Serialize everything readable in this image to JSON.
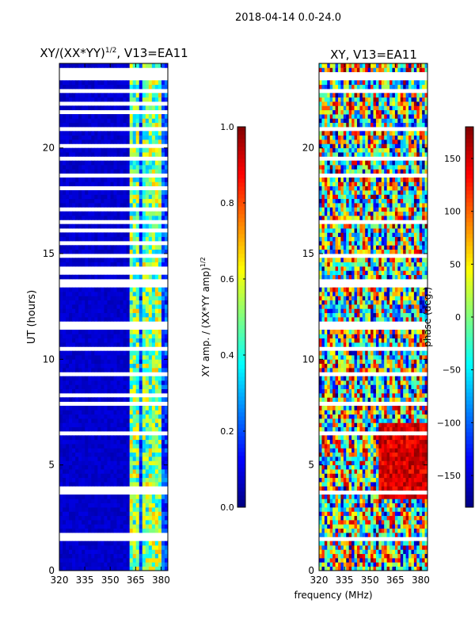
{
  "figure": {
    "suptitle": "2018-04-14 0.0-24.0",
    "shared_xlabel": "frequency (MHz)"
  },
  "colormap": "jet",
  "chart_data": [
    {
      "type": "heatmap",
      "title_main": "XY/(XX*YY)",
      "title_sup": "1/2",
      "title_tail": ", V13=EA11",
      "ylabel": "UT (hours)",
      "xlim": [
        320,
        384
      ],
      "ylim": [
        0,
        24
      ],
      "xticks": [
        320,
        335,
        350,
        365,
        380
      ],
      "yticks": [
        0,
        5,
        10,
        15,
        20
      ],
      "colorbar": {
        "label": "XY amp. / (XX*YY amp)",
        "label_sup": "1/2",
        "range": [
          0.0,
          1.0
        ],
        "ticks": [
          "0.0",
          "0.2",
          "0.4",
          "0.6",
          "0.8",
          "1.0"
        ],
        "tick_values": [
          0.0,
          0.2,
          0.4,
          0.6,
          0.8,
          1.0
        ]
      },
      "pattern": {
        "low_value_region_mhz": [
          320,
          361
        ],
        "low_value": 0.05,
        "bright_columns_mhz": [
          362,
          364,
          366,
          369,
          371,
          373,
          376,
          378,
          380
        ],
        "bright_value_range": [
          0.3,
          0.7
        ],
        "flagged_time_bands_hours": [
          [
            0.2,
            0.3
          ],
          [
            1.5,
            1.6
          ],
          [
            1.7,
            1.8
          ],
          [
            3.6,
            3.7
          ],
          [
            3.9,
            4.0
          ],
          [
            6.4,
            6.5
          ],
          [
            6.9,
            7.0
          ],
          [
            7.8,
            7.9
          ],
          [
            8.3,
            8.4
          ],
          [
            9.3,
            9.4
          ],
          [
            10.4,
            10.5
          ],
          [
            11.5,
            11.8
          ],
          [
            12.9,
            13.0
          ],
          [
            13.5,
            13.7
          ],
          [
            14.1,
            14.3
          ],
          [
            14.8,
            14.9
          ],
          [
            15.4,
            15.5
          ],
          [
            16.0,
            16.1
          ],
          [
            16.4,
            16.6
          ],
          [
            17.1,
            17.2
          ],
          [
            17.6,
            17.7
          ],
          [
            18.1,
            18.2
          ],
          [
            18.7,
            18.8
          ],
          [
            19.1,
            19.2
          ],
          [
            19.5,
            19.6
          ],
          [
            20.1,
            20.2
          ],
          [
            20.9,
            21.0
          ],
          [
            21.6,
            21.7
          ],
          [
            22.0,
            22.1
          ],
          [
            22.6,
            22.7
          ],
          [
            23.3,
            23.5
          ],
          [
            23.7,
            23.8
          ]
        ]
      }
    },
    {
      "type": "heatmap",
      "title_main": "XY, V13=EA11",
      "title_sup": "",
      "title_tail": "",
      "ylabel": "",
      "xlim": [
        320,
        384
      ],
      "ylim": [
        0,
        24
      ],
      "xticks": [
        320,
        335,
        350,
        365,
        380
      ],
      "yticks": [
        0,
        5,
        10,
        15,
        20
      ],
      "colorbar": {
        "label": "phase (deg.)",
        "label_sup": "",
        "range": [
          -180,
          180
        ],
        "ticks": [
          "−150",
          "−100",
          "−50",
          "0",
          "50",
          "100",
          "150"
        ],
        "tick_values": [
          -150,
          -100,
          -50,
          0,
          50,
          100,
          150
        ]
      },
      "pattern": {
        "noisy_phase": true,
        "warm_region_hours": [
          3.5,
          7.0
        ],
        "warm_region_mhz": [
          355,
          384
        ],
        "flagged_time_bands_hours": [
          [
            0.2,
            0.3
          ],
          [
            1.5,
            1.6
          ],
          [
            3.6,
            3.7
          ],
          [
            6.4,
            6.5
          ],
          [
            6.9,
            7.0
          ],
          [
            7.8,
            7.9
          ],
          [
            9.3,
            9.4
          ],
          [
            10.4,
            10.5
          ],
          [
            11.5,
            11.8
          ],
          [
            12.9,
            13.0
          ],
          [
            13.5,
            13.7
          ],
          [
            14.8,
            14.9
          ],
          [
            16.4,
            16.6
          ],
          [
            18.7,
            18.8
          ],
          [
            19.5,
            19.6
          ],
          [
            20.9,
            21.0
          ],
          [
            22.6,
            22.7
          ],
          [
            23.3,
            23.5
          ]
        ]
      }
    }
  ]
}
